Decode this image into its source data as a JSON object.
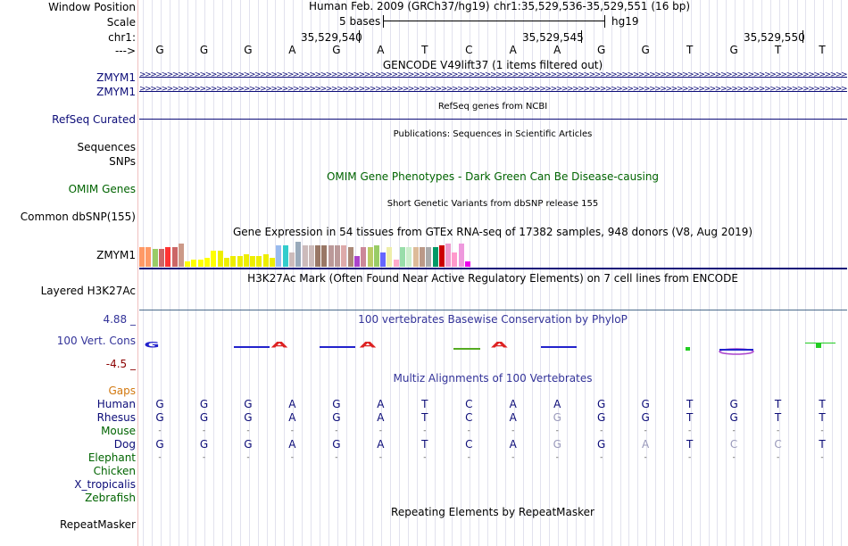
{
  "header": {
    "window_position_label": "Window Position",
    "scale_label": "Scale",
    "chr_label": "chr1:",
    "arrow_label": "--->",
    "assembly": "Human Feb. 2009 (GRCh37/hg19)",
    "position": "chr1:35,529,536-35,529,551 (16 bp)",
    "scale_text": "5 bases",
    "scale_db": "hg19",
    "coord_1": "35,529,540",
    "coord_2": "35,529,545",
    "coord_3": "35,529,550"
  },
  "bases": [
    "G",
    "G",
    "G",
    "A",
    "G",
    "A",
    "T",
    "C",
    "A",
    "A",
    "G",
    "G",
    "T",
    "G",
    "T",
    "T"
  ],
  "tracks": {
    "gencode": {
      "title": "GENCODE V49lift37 (1 items filtered out)",
      "items": [
        "ZMYM1",
        "ZMYM1"
      ]
    },
    "refseq": {
      "label": "RefSeq Curated",
      "title": "RefSeq genes from NCBI"
    },
    "publications": {
      "label": "Sequences",
      "title": "Publications: Sequences in Scientific Articles"
    },
    "snps": {
      "label": "SNPs"
    },
    "omim": {
      "label": "OMIM Genes",
      "title": "OMIM Gene Phenotypes - Dark Green Can Be Disease-causing"
    },
    "dbsnp": {
      "label": "Common dbSNP(155)",
      "title": "Short Genetic Variants from dbSNP release 155"
    },
    "gtex": {
      "label": "ZMYM1",
      "title": "Gene Expression in 54 tissues from GTEx RNA-seq of 17382 samples, 948 donors (V8, Aug 2019)",
      "values": [
        22,
        22,
        20,
        20,
        22,
        22,
        26,
        6,
        8,
        8,
        10,
        18,
        18,
        10,
        12,
        12,
        14,
        12,
        12,
        14,
        10,
        24,
        24,
        16,
        28,
        24,
        24,
        24,
        24,
        24,
        24,
        24,
        22,
        12,
        22,
        22,
        24,
        16,
        22,
        8,
        22,
        22,
        22,
        22,
        22,
        22,
        24,
        26,
        16,
        26,
        6
      ],
      "colors": [
        "#ff9966",
        "#ff9966",
        "#99cc66",
        "#cc6666",
        "#ff3333",
        "#cc6666",
        "#cc9988",
        "#ffff00",
        "#ffff00",
        "#ffff00",
        "#ffff00",
        "#ffff00",
        "#eeee00",
        "#eeee00",
        "#eeee00",
        "#eeee00",
        "#eeee00",
        "#eeee00",
        "#eeee00",
        "#eeee00",
        "#eeee00",
        "#99bbee",
        "#33cccc",
        "#ccbbbb",
        "#99aabb",
        "#ccbbbb",
        "#ccbbbb",
        "#997766",
        "#997766",
        "#bb9999",
        "#bb9999",
        "#ddaaaa",
        "#aa8877",
        "#aa44cc",
        "#cc8899",
        "#bbcc66",
        "#99cc66",
        "#6666ff",
        "#eeeeaa",
        "#ffaacc",
        "#99ddaa",
        "#cceecc",
        "#ddbb99",
        "#bb9988",
        "#aaaaaa",
        "#009966",
        "#cc0000",
        "#ee99cc",
        "#ff99cc",
        "#ee99dd",
        "#ee00ee"
      ]
    },
    "h3k27ac": {
      "label": "Layered H3K27Ac",
      "title": "H3K27Ac Mark (Often Found Near Active Regulatory Elements) on 7 cell lines from ENCODE"
    },
    "phylop": {
      "label": "100 Vert. Cons",
      "title": "100 vertebrates Basewise Conservation by PhyloP",
      "ymax": "4.88 _",
      "ymin": "-4.5 _"
    },
    "multiz": {
      "title": "Multiz Alignments of 100 Vertebrates",
      "gaps_label": "Gaps",
      "species": [
        {
          "name": "Human",
          "seq": [
            "G",
            "G",
            "G",
            "A",
            "G",
            "A",
            "T",
            "C",
            "A",
            "A",
            "G",
            "G",
            "T",
            "G",
            "T",
            "T"
          ]
        },
        {
          "name": "Rhesus",
          "seq": [
            "G",
            "G",
            "G",
            "A",
            "G",
            "A",
            "T",
            "C",
            "A",
            "G",
            "G",
            "G",
            "T",
            "G",
            "T",
            "T"
          ]
        },
        {
          "name": "Mouse",
          "seq": [
            "-",
            "-",
            "-",
            "-",
            "-",
            "-",
            "-",
            "-",
            "-",
            "-",
            "-",
            "-",
            "-",
            "-",
            "-",
            "-"
          ]
        },
        {
          "name": "Dog",
          "seq": [
            "G",
            "G",
            "G",
            "A",
            "G",
            "A",
            "T",
            "C",
            "A",
            "G",
            "G",
            "A",
            "T",
            "C",
            "C",
            "T"
          ]
        },
        {
          "name": "Elephant",
          "seq": [
            "-",
            "-",
            "-",
            "-",
            "-",
            "-",
            "-",
            "-",
            "-",
            "-",
            "-",
            "-",
            "-",
            "-",
            "-",
            "-"
          ]
        },
        {
          "name": "Chicken",
          "seq": []
        },
        {
          "name": "X_tropicalis",
          "seq": []
        },
        {
          "name": "Zebrafish",
          "seq": []
        }
      ]
    },
    "repeatmasker": {
      "label": "RepeatMasker",
      "title": "Repeating Elements by RepeatMasker"
    }
  }
}
